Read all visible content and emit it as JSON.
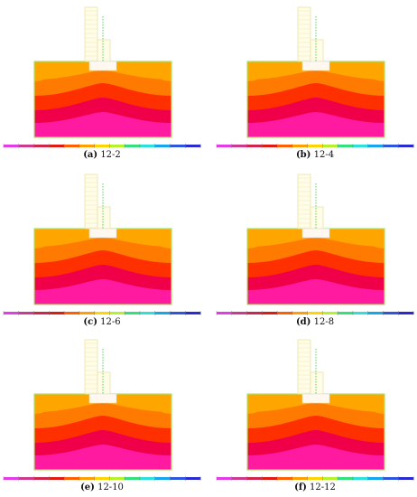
{
  "figure": {
    "panels": [
      {
        "letter": "(a)",
        "label": "12-2"
      },
      {
        "letter": "(b)",
        "label": "12-4"
      },
      {
        "letter": "(c)",
        "label": "12-6"
      },
      {
        "letter": "(d)",
        "label": "12-8"
      },
      {
        "letter": "(e)",
        "label": "12-10"
      },
      {
        "letter": "(f)",
        "label": "12-12"
      }
    ],
    "band_colors": [
      "#ffa500",
      "#ff7a00",
      "#ff3000",
      "#f1004a",
      "#ff1aa0",
      "#e61ee6"
    ],
    "colorbar_colors": [
      "#e23be7",
      "#cc3a8e",
      "#d0254b",
      "#e01a10",
      "#ff5f00",
      "#ffa000",
      "#ffd400",
      "#b6f22b",
      "#33e07a",
      "#2ee0d9",
      "#16a6ee",
      "#2c55e0",
      "#2a2ad0"
    ]
  }
}
